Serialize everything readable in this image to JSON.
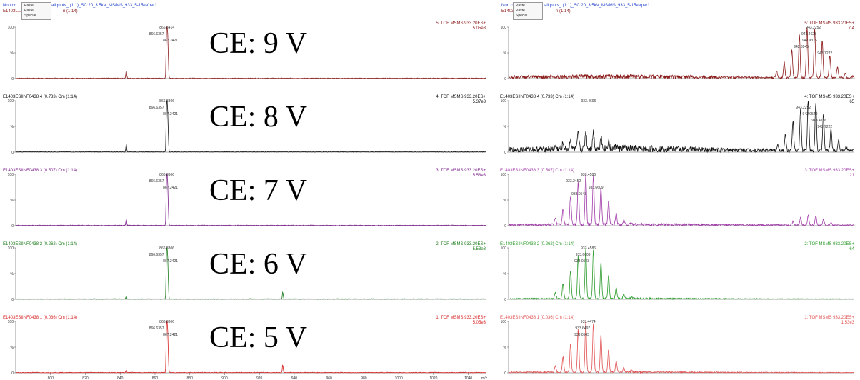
{
  "header": {
    "left_line1_start": "Non cc",
    "left_line1_end": "aliquots_ (1:1)_SC:20_3.5kV_MS/MS_933_5-15eVper1",
    "left_line2": "E1403L...",
    "left_line2_end": "n (1:14)",
    "right_line1_start": "Non cc",
    "right_line1_end": "aliquots_ (1:1)_SC:20_3.5kV_MS/MS_933_5-15eVper1",
    "right_line2": "E1403L...",
    "right_line2_end": "n (1:14)",
    "popup_items": [
      "Paste",
      "Paste Special..."
    ]
  },
  "chart_data": [
    {
      "type": "line",
      "panel": "left",
      "xlabel": "m/z",
      "xlim": [
        780,
        1050
      ],
      "x_ticks": [
        800,
        820,
        840,
        860,
        880,
        900,
        920,
        940,
        960,
        980,
        1000,
        1020,
        1040
      ],
      "y_ticks": [
        "100",
        "%",
        "0"
      ],
      "series": [
        {
          "ce_label": "CE: 9 V",
          "header_left": "",
          "header_right": "5: TOF MSMS 933.20ES+",
          "intensity": "5.05e3",
          "color": "#8b1a1a",
          "peaks": [
            {
              "x": 843.5,
              "y": 16
            },
            {
              "x": 866.6357,
              "y": 65
            },
            {
              "x": 866.8414,
              "y": 100
            },
            {
              "x": 867.2421,
              "y": 55
            },
            {
              "x": 867.6,
              "y": 30
            }
          ],
          "labels": [
            {
              "x": 866.8414,
              "text": "866.8414"
            },
            {
              "x": 866.6357,
              "text": "866.6357"
            },
            {
              "x": 867.2421,
              "text": "867.2421"
            }
          ]
        },
        {
          "ce_label": "CE: 8 V",
          "header_left": "E1403ESIINF0438 4 (0.733) Cm (1:14)",
          "header_right": "4: TOF MSMS 933.20ES+",
          "intensity": "5.37e3",
          "color": "#111111",
          "peaks": [
            {
              "x": 843.5,
              "y": 14
            },
            {
              "x": 866.6357,
              "y": 60
            },
            {
              "x": 866.8306,
              "y": 100
            },
            {
              "x": 867.2421,
              "y": 50
            },
            {
              "x": 867.6,
              "y": 25
            }
          ],
          "labels": [
            {
              "x": 866.8306,
              "text": "866.8306"
            },
            {
              "x": 866.6357,
              "text": "866.6357"
            },
            {
              "x": 867.2421,
              "text": "867.2421"
            }
          ]
        },
        {
          "ce_label": "CE: 7 V",
          "header_left": "E1403ESIINF0438 3 (0.507) Cm (1:14)",
          "header_right": "3: TOF MSMS 933.20ES+",
          "intensity": "5.58e3",
          "color": "#7a1f8a",
          "peaks": [
            {
              "x": 843.5,
              "y": 12
            },
            {
              "x": 866.6357,
              "y": 62
            },
            {
              "x": 866.8306,
              "y": 100
            },
            {
              "x": 867.2421,
              "y": 52
            },
            {
              "x": 867.6,
              "y": 26
            }
          ],
          "labels": [
            {
              "x": 866.8306,
              "text": "866.8306"
            },
            {
              "x": 866.6357,
              "text": "866.6357"
            },
            {
              "x": 867.2421,
              "text": "867.2421"
            }
          ]
        },
        {
          "ce_label": "CE: 6 V",
          "header_left": "E1403ESIINF0438 2 (0.262) Cm (1:14)",
          "header_right": "2: TOF MSMS 933.20ES+",
          "intensity": "5.53e3",
          "color": "#1a7a1a",
          "peaks": [
            {
              "x": 843.5,
              "y": 5
            },
            {
              "x": 866.6357,
              "y": 62
            },
            {
              "x": 866.8306,
              "y": 100
            },
            {
              "x": 867.2421,
              "y": 52
            },
            {
              "x": 867.6,
              "y": 26
            },
            {
              "x": 933.4,
              "y": 14
            }
          ],
          "labels": [
            {
              "x": 866.8306,
              "text": "866.8306"
            },
            {
              "x": 866.6357,
              "text": "866.6357"
            },
            {
              "x": 867.2421,
              "text": "867.2421"
            }
          ]
        },
        {
          "ce_label": "CE: 5 V",
          "header_left": "E1403ESIINF0438 1 (0.036) Cm (1:14)",
          "header_right": "1: TOF MSMS 933.20ES+",
          "intensity": "5.05e3",
          "color": "#d42020",
          "peaks": [
            {
              "x": 843.5,
              "y": 5
            },
            {
              "x": 866.6357,
              "y": 62
            },
            {
              "x": 866.8306,
              "y": 100
            },
            {
              "x": 867.2421,
              "y": 52
            },
            {
              "x": 867.6,
              "y": 26
            },
            {
              "x": 933.4,
              "y": 16
            }
          ],
          "labels": [
            {
              "x": 866.8306,
              "text": "866.8306"
            },
            {
              "x": 866.6357,
              "text": "866.6357"
            },
            {
              "x": 867.2421,
              "text": "867.2421"
            }
          ]
        }
      ]
    },
    {
      "type": "line",
      "panel": "right",
      "xlabel": "",
      "xlim": [
        930,
        945
      ],
      "x_ticks": [],
      "y_ticks": [
        "100",
        "%",
        "0"
      ],
      "series": [
        {
          "header_left": "",
          "header_right": "5: TOF MSMS 933.20ES+",
          "intensity": "7.4",
          "color": "#8b1a1a",
          "clusters": [
            {
              "center": 942.95,
              "height": 100,
              "spacing": 0.33,
              "width": 4
            }
          ],
          "baseline_noise": 8,
          "labels": [
            {
              "x": 943.2252,
              "text": "943.2252"
            },
            {
              "x": 943.4623,
              "text": "943.4623"
            },
            {
              "x": 942.9315,
              "text": "942.9315"
            },
            {
              "x": 942.6945,
              "text": "942.6945"
            },
            {
              "x": 943.7222,
              "text": "943.7222"
            }
          ]
        },
        {
          "header_left": "E1403ESIINF0438 4 (0.733) Cm (1:14)",
          "header_right": "4: TOF MSMS 933.20ES+",
          "intensity": "65",
          "color": "#111111",
          "clusters": [
            {
              "center": 933.35,
              "height": 36,
              "spacing": 0.33,
              "width": 4
            },
            {
              "center": 943.0,
              "height": 100,
              "spacing": 0.33,
              "width": 4
            }
          ],
          "baseline_noise": 14,
          "labels": [
            {
              "x": 933.4696,
              "text": "933.4696"
            },
            {
              "x": 943.2252,
              "text": "943.2252"
            },
            {
              "x": 942.954,
              "text": "942.9540"
            },
            {
              "x": 943.4736,
              "text": "943.4736"
            },
            {
              "x": 943.7222,
              "text": "943.7222"
            }
          ]
        },
        {
          "header_left": "E1403ESIINF0438 3 (0.507) Cm (1:14)",
          "header_right": "3: TOF MSMS 933.20ES+",
          "intensity": "21",
          "color": "#a03aa8",
          "clusters": [
            {
              "center": 933.35,
              "height": 100,
              "spacing": 0.33,
              "width": 4
            },
            {
              "center": 943.0,
              "height": 20,
              "spacing": 0.33,
              "width": 3
            }
          ],
          "baseline_noise": 5,
          "labels": [
            {
              "x": 933.4586,
              "text": "933.4586"
            },
            {
              "x": 933.2452,
              "text": "933.2452"
            },
            {
              "x": 933.6609,
              "text": "933.6609"
            },
            {
              "x": 933.0543,
              "text": "933.0543"
            }
          ]
        },
        {
          "header_left": "E1403ESIINF0438 2 (0.262) Cm (1:14)",
          "header_right": "2: TOF MSMS 933.20ES+",
          "intensity": "64",
          "color": "#2a9a2a",
          "clusters": [
            {
              "center": 933.35,
              "height": 100,
              "spacing": 0.33,
              "width": 4
            }
          ],
          "baseline_noise": 3,
          "labels": [
            {
              "x": 933.4586,
              "text": "933.4586"
            },
            {
              "x": 933.6609,
              "text": "933.6609"
            },
            {
              "x": 933.0543,
              "text": "933.0543"
            }
          ]
        },
        {
          "header_left": "E1403ESIINF0438 1 (0.036) Cm (1:14)",
          "header_right": "1: TOF MSMS 933.20ES+",
          "intensity": "1.53e3",
          "color": "#e05050",
          "clusters": [
            {
              "center": 933.35,
              "height": 100,
              "spacing": 0.33,
              "width": 4
            }
          ],
          "baseline_noise": 3,
          "labels": [
            {
              "x": 933.4474,
              "text": "933.4474"
            },
            {
              "x": 933.6497,
              "text": "933.6497"
            },
            {
              "x": 933.0543,
              "text": "933.0543"
            }
          ]
        }
      ]
    }
  ]
}
